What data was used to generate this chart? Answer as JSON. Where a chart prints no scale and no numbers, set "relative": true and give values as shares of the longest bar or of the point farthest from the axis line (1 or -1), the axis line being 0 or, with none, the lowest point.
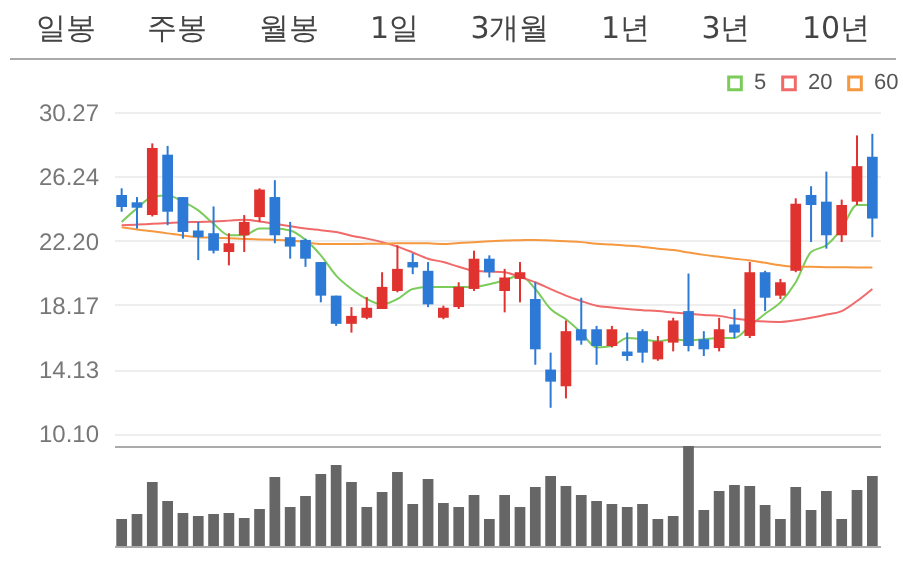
{
  "chart_data": [
    {
      "type": "other",
      "annotations": [
        "일봉",
        "주봉",
        "월봉",
        "1일",
        "3개월",
        "1년",
        "3년",
        "10년"
      ]
    },
    {
      "type": "candlestick",
      "categories": [
        null,
        null,
        null,
        null,
        null,
        null,
        null,
        null,
        null,
        null,
        null,
        null,
        null,
        null,
        null,
        null,
        null,
        null,
        null,
        null,
        null,
        null,
        null,
        null,
        null,
        null,
        null,
        null,
        null,
        null,
        null,
        null,
        null,
        null,
        null,
        null,
        null,
        null,
        null,
        null,
        null,
        null,
        null,
        null,
        null,
        null,
        null,
        null,
        null,
        null
      ],
      "ohlc": [
        [
          25.06,
          25.48,
          24.01,
          24.3
        ],
        [
          24.6,
          24.93,
          22.95,
          24.26
        ],
        [
          23.8,
          28.3,
          23.71,
          28.01
        ],
        [
          27.59,
          28.14,
          23.16,
          24.01
        ],
        [
          24.93,
          24.93,
          22.32,
          22.74
        ],
        [
          22.83,
          23.37,
          20.97,
          22.41
        ],
        [
          22.66,
          24.34,
          21.39,
          21.56
        ],
        [
          21.48,
          22.66,
          20.64,
          22.03
        ],
        [
          22.53,
          23.8,
          21.48,
          23.37
        ],
        [
          23.67,
          25.48,
          23.37,
          25.4
        ],
        [
          24.93,
          25.99,
          22.03,
          22.53
        ],
        [
          22.41,
          23.37,
          21.06,
          21.82
        ],
        [
          22.24,
          22.32,
          20.55,
          21.06
        ],
        [
          20.85,
          20.85,
          18.32,
          18.74
        ],
        [
          18.74,
          18.74,
          16.84,
          16.97
        ],
        [
          16.97,
          18.02,
          16.42,
          17.47
        ],
        [
          17.35,
          18.65,
          17.26,
          17.98
        ],
        [
          17.9,
          20.21,
          17.9,
          19.29
        ],
        [
          19.03,
          21.9,
          18.95,
          20.42
        ],
        [
          20.85,
          21.39,
          20.09,
          20.51
        ],
        [
          20.3,
          20.85,
          18.02,
          18.19
        ],
        [
          17.35,
          18.11,
          17.26,
          17.98
        ],
        [
          18.02,
          19.58,
          17.9,
          19.29
        ],
        [
          19.16,
          21.56,
          19.03,
          21.06
        ],
        [
          21.06,
          21.27,
          19.88,
          20.21
        ],
        [
          19.03,
          20.42,
          17.69,
          19.88
        ],
        [
          19.79,
          20.85,
          18.32,
          20.21
        ],
        [
          18.53,
          19.58,
          14.4,
          15.37
        ],
        [
          14.1,
          15.16,
          11.7,
          13.34
        ],
        [
          13.05,
          17.18,
          12.29,
          16.51
        ],
        [
          16.63,
          18.61,
          15.66,
          15.92
        ],
        [
          16.63,
          16.84,
          14.4,
          15.58
        ],
        [
          15.58,
          16.84,
          15.49,
          16.63
        ],
        [
          15.24,
          16.42,
          14.65,
          14.95
        ],
        [
          16.51,
          16.63,
          14.53,
          15.16
        ],
        [
          14.74,
          16.21,
          14.65,
          15.87
        ],
        [
          15.79,
          17.35,
          15.24,
          17.18
        ],
        [
          17.77,
          20.13,
          15.24,
          15.58
        ],
        [
          16.0,
          16.51,
          14.95,
          15.37
        ],
        [
          15.45,
          17.35,
          15.24,
          16.63
        ],
        [
          16.93,
          17.9,
          16.08,
          16.42
        ],
        [
          16.21,
          20.85,
          16.08,
          20.21
        ],
        [
          20.21,
          20.3,
          17.77,
          18.61
        ],
        [
          18.74,
          19.79,
          18.53,
          19.58
        ],
        [
          20.3,
          24.85,
          20.21,
          24.51
        ],
        [
          25.06,
          25.61,
          22.11,
          24.43
        ],
        [
          24.64,
          26.53,
          21.69,
          22.53
        ],
        [
          22.53,
          24.77,
          22.11,
          24.43
        ],
        [
          24.64,
          28.8,
          24.43,
          26.87
        ],
        [
          27.46,
          28.9,
          22.41,
          23.58
        ]
      ],
      "colors": [
        "#2d7ad6",
        "#2d7ad6",
        "#e0332f",
        "#2d7ad6",
        "#2d7ad6",
        "#2d7ad6",
        "#2d7ad6",
        "#e0332f",
        "#e0332f",
        "#e0332f",
        "#2d7ad6",
        "#2d7ad6",
        "#2d7ad6",
        "#2d7ad6",
        "#2d7ad6",
        "#e0332f",
        "#e0332f",
        "#e0332f",
        "#e0332f",
        "#2d7ad6",
        "#2d7ad6",
        "#e0332f",
        "#e0332f",
        "#e0332f",
        "#2d7ad6",
        "#e0332f",
        "#e0332f",
        "#2d7ad6",
        "#2d7ad6",
        "#e0332f",
        "#2d7ad6",
        "#2d7ad6",
        "#e0332f",
        "#2d7ad6",
        "#2d7ad6",
        "#e0332f",
        "#e0332f",
        "#2d7ad6",
        "#2d7ad6",
        "#e0332f",
        "#2d7ad6",
        "#e0332f",
        "#2d7ad6",
        "#e0332f",
        "#e0332f",
        "#2d7ad6",
        "#2d7ad6",
        "#e0332f",
        "#e0332f",
        "#2d7ad6"
      ],
      "series": [
        {
          "name": "5",
          "type": "line",
          "color": "#7ccc5c",
          "values": [
            23.37,
            24.22,
            24.93,
            25.02,
            24.64,
            24.09,
            23.25,
            22.53,
            22.53,
            22.95,
            22.95,
            22.83,
            22.24,
            21.27,
            20.0,
            19.16,
            18.53,
            18.19,
            18.53,
            19.16,
            19.29,
            19.29,
            19.29,
            19.29,
            19.46,
            19.71,
            20.0,
            19.16,
            17.9,
            17.26,
            16.42,
            15.49,
            15.58,
            16.08,
            16.0,
            15.87,
            16.0,
            15.92,
            16.0,
            16.08,
            16.08,
            16.84,
            17.6,
            18.32,
            19.58,
            21.48,
            21.9,
            22.95,
            24.43,
            24.43
          ]
        },
        {
          "name": "20",
          "type": "line",
          "color": "#f06a6a",
          "values": [
            23.16,
            23.2,
            23.25,
            23.3,
            23.35,
            23.37,
            23.4,
            23.45,
            23.5,
            23.4,
            23.25,
            23.1,
            22.95,
            22.85,
            22.74,
            22.5,
            22.32,
            22.1,
            21.82,
            21.45,
            21.06,
            20.85,
            20.55,
            20.3,
            20.25,
            20.21,
            19.9,
            19.58,
            19.15,
            18.74,
            18.4,
            18.11,
            18.0,
            17.9,
            17.83,
            17.77,
            17.68,
            17.6,
            17.53,
            17.47,
            17.3,
            17.18,
            17.12,
            17.09,
            17.2,
            17.35,
            17.55,
            17.77,
            18.4,
            19.16
          ]
        },
        {
          "name": "60",
          "type": "line",
          "color": "#f5983f",
          "values": [
            23.04,
            22.9,
            22.78,
            22.65,
            22.52,
            22.41,
            22.38,
            22.34,
            22.3,
            22.27,
            22.24,
            22.2,
            22.1,
            21.98,
            21.98,
            21.98,
            22.0,
            22.0,
            22.03,
            22.03,
            22.03,
            21.98,
            22.05,
            22.1,
            22.15,
            22.2,
            22.22,
            22.24,
            22.2,
            22.15,
            22.1,
            22.0,
            21.95,
            21.88,
            21.8,
            21.69,
            21.6,
            21.45,
            21.3,
            21.18,
            21.06,
            20.95,
            20.8,
            20.65,
            20.55,
            20.55,
            20.53,
            20.52,
            20.51,
            20.51
          ]
        }
      ],
      "ylim": [
        9.3,
        30.27
      ],
      "yticks": [
        {
          "value": 10.1,
          "label": "10.10"
        },
        14.13,
        18.17,
        {
          "value": 22.2,
          "label": "22.20"
        },
        26.24,
        30.27
      ],
      "grid": "y",
      "legend": "top right"
    },
    {
      "type": "bar",
      "relative": true,
      "color": "#666666",
      "categories": [
        null,
        null,
        null,
        null,
        null,
        null,
        null,
        null,
        null,
        null,
        null,
        null,
        null,
        null,
        null,
        null,
        null,
        null,
        null,
        null,
        null,
        null,
        null,
        null,
        null,
        null,
        null,
        null,
        null,
        null,
        null,
        null,
        null,
        null,
        null,
        null,
        null,
        null,
        null,
        null,
        null,
        null,
        null,
        null,
        null,
        null,
        null,
        null,
        null,
        null
      ],
      "values": [
        0.27,
        0.32,
        0.64,
        0.45,
        0.33,
        0.3,
        0.32,
        0.33,
        0.28,
        0.37,
        0.69,
        0.39,
        0.5,
        0.72,
        0.81,
        0.64,
        0.39,
        0.54,
        0.74,
        0.42,
        0.67,
        0.43,
        0.39,
        0.51,
        0.27,
        0.51,
        0.39,
        0.59,
        0.7,
        0.6,
        0.51,
        0.45,
        0.42,
        0.39,
        0.42,
        0.27,
        0.3,
        1,
        0.36,
        0.55,
        0.61,
        0.6,
        0.41,
        0.27,
        0.59,
        0.36,
        0.55,
        0.27,
        0.56,
        0.7
      ]
    }
  ]
}
